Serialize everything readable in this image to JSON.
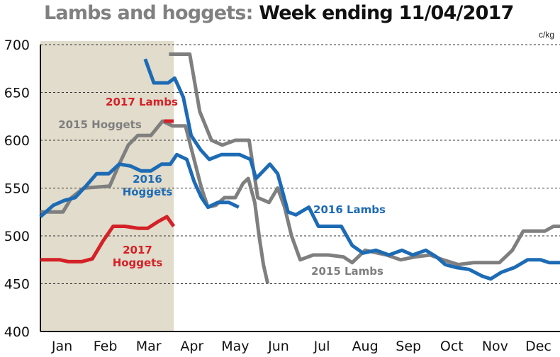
{
  "title_part1": "Lambs and hoggets:",
  "title_part2": "Week ending 11/04/2017",
  "chart_data": {
    "type": "line",
    "title": "Lambs and hoggets: Week ending 11/04/2017",
    "ylabel": "c/kg",
    "xlabel": "",
    "ylim": [
      400,
      700
    ],
    "yticks": [
      400,
      450,
      500,
      550,
      600,
      650,
      700
    ],
    "xlim": [
      0,
      12
    ],
    "month_ticks": [
      {
        "label": "Jan",
        "x": 0.5
      },
      {
        "label": "Feb",
        "x": 1.5
      },
      {
        "label": "Mar",
        "x": 2.5
      },
      {
        "label": "Apr",
        "x": 3.5
      },
      {
        "label": "May",
        "x": 4.5
      },
      {
        "label": "Jun",
        "x": 5.5
      },
      {
        "label": "Jul",
        "x": 6.5
      },
      {
        "label": "Aug",
        "x": 7.5
      },
      {
        "label": "Sep",
        "x": 8.5
      },
      {
        "label": "Oct",
        "x": 9.5
      },
      {
        "label": "Nov",
        "x": 10.5
      },
      {
        "label": "Dec",
        "x": 11.5
      }
    ],
    "shaded_range": [
      0,
      3.08
    ],
    "grid": "horizontal",
    "series": [
      {
        "name": "2015 Hoggets",
        "color": "#7f7f7f",
        "labels": [
          "2015 Hoggets"
        ],
        "points": [
          [
            0,
            525
          ],
          [
            0.18,
            525
          ],
          [
            0.52,
            525
          ],
          [
            0.72,
            540
          ],
          [
            1.0,
            550
          ],
          [
            1.6,
            552
          ],
          [
            1.82,
            575
          ],
          [
            2.03,
            595
          ],
          [
            2.25,
            605
          ],
          [
            2.55,
            605
          ],
          [
            2.82,
            620
          ],
          [
            3.05,
            615
          ],
          [
            3.35,
            615
          ],
          [
            3.55,
            580
          ],
          [
            3.72,
            550
          ],
          [
            3.87,
            530
          ],
          [
            4.05,
            532
          ],
          [
            4.25,
            540
          ],
          [
            4.5,
            540
          ],
          [
            4.68,
            555
          ],
          [
            4.8,
            560
          ],
          [
            4.95,
            535
          ],
          [
            5.05,
            500
          ],
          [
            5.15,
            470
          ],
          [
            5.25,
            450
          ]
        ]
      },
      {
        "name": "2015 Lambs",
        "color": "#7f7f7f",
        "labels": [
          "2015 Lambs"
        ],
        "points": [
          [
            2.97,
            690
          ],
          [
            3.45,
            690
          ],
          [
            3.68,
            630
          ],
          [
            3.95,
            600
          ],
          [
            4.2,
            595
          ],
          [
            4.5,
            600
          ],
          [
            4.82,
            600
          ],
          [
            5.02,
            540
          ],
          [
            5.28,
            535
          ],
          [
            5.48,
            550
          ],
          [
            5.64,
            530
          ],
          [
            5.8,
            500
          ],
          [
            6.0,
            475
          ],
          [
            6.3,
            480
          ],
          [
            6.65,
            480
          ],
          [
            7.0,
            478
          ],
          [
            7.2,
            472
          ],
          [
            7.5,
            485
          ],
          [
            8.0,
            480
          ],
          [
            8.32,
            475
          ],
          [
            8.65,
            478
          ],
          [
            9.0,
            480
          ],
          [
            9.3,
            475
          ],
          [
            9.65,
            470
          ],
          [
            10.0,
            472
          ],
          [
            10.6,
            472
          ],
          [
            10.9,
            485
          ],
          [
            11.15,
            505
          ],
          [
            11.65,
            505
          ],
          [
            11.85,
            510
          ],
          [
            12.1,
            510
          ]
        ]
      },
      {
        "name": "2016 Hoggets",
        "color": "#1d6bb5",
        "labels": [
          "2016",
          "Hoggets"
        ],
        "points": [
          [
            0,
            520
          ],
          [
            0.3,
            532
          ],
          [
            0.55,
            537
          ],
          [
            0.8,
            540
          ],
          [
            1.05,
            552
          ],
          [
            1.3,
            565
          ],
          [
            1.58,
            565
          ],
          [
            1.82,
            575
          ],
          [
            2.08,
            573
          ],
          [
            2.32,
            568
          ],
          [
            2.55,
            568
          ],
          [
            2.8,
            575
          ],
          [
            3.0,
            575
          ],
          [
            3.15,
            585
          ],
          [
            3.38,
            580
          ],
          [
            3.55,
            557
          ],
          [
            3.72,
            540
          ],
          [
            3.87,
            530
          ],
          [
            4.1,
            535
          ],
          [
            4.35,
            535
          ],
          [
            4.58,
            530
          ]
        ]
      },
      {
        "name": "2016 Lambs",
        "color": "#1d6bb5",
        "labels": [
          "2016 Lambs"
        ],
        "points": [
          [
            2.42,
            685
          ],
          [
            2.62,
            660
          ],
          [
            2.95,
            660
          ],
          [
            3.1,
            665
          ],
          [
            3.3,
            645
          ],
          [
            3.48,
            605
          ],
          [
            3.7,
            590
          ],
          [
            3.9,
            580
          ],
          [
            4.18,
            585
          ],
          [
            4.6,
            585
          ],
          [
            4.85,
            580
          ],
          [
            4.98,
            560
          ],
          [
            5.3,
            575
          ],
          [
            5.48,
            565
          ],
          [
            5.72,
            525
          ],
          [
            5.9,
            522
          ],
          [
            6.2,
            530
          ],
          [
            6.42,
            510
          ],
          [
            6.95,
            510
          ],
          [
            7.2,
            490
          ],
          [
            7.45,
            482
          ],
          [
            7.75,
            485
          ],
          [
            8.05,
            480
          ],
          [
            8.35,
            485
          ],
          [
            8.6,
            480
          ],
          [
            8.9,
            485
          ],
          [
            9.15,
            478
          ],
          [
            9.35,
            470
          ],
          [
            9.6,
            467
          ],
          [
            9.9,
            465
          ],
          [
            10.2,
            458
          ],
          [
            10.4,
            455
          ],
          [
            10.65,
            462
          ],
          [
            10.95,
            467
          ],
          [
            11.25,
            475
          ],
          [
            11.55,
            475
          ],
          [
            11.75,
            472
          ],
          [
            12.0,
            472
          ]
        ]
      },
      {
        "name": "2017 Hoggets",
        "color": "#d42127",
        "labels": [
          "2017",
          "Hoggets"
        ],
        "points": [
          [
            0,
            475
          ],
          [
            0.45,
            475
          ],
          [
            0.65,
            473
          ],
          [
            0.95,
            473
          ],
          [
            1.2,
            476
          ],
          [
            1.45,
            495
          ],
          [
            1.68,
            510
          ],
          [
            1.95,
            510
          ],
          [
            2.25,
            508
          ],
          [
            2.48,
            508
          ],
          [
            2.72,
            515
          ],
          [
            2.92,
            520
          ],
          [
            3.08,
            510
          ]
        ]
      },
      {
        "name": "2017 Lambs",
        "color": "#d42127",
        "labels": [
          "2017 Lambs"
        ],
        "points": [
          [
            2.85,
            620
          ],
          [
            3.08,
            620
          ]
        ]
      }
    ]
  }
}
